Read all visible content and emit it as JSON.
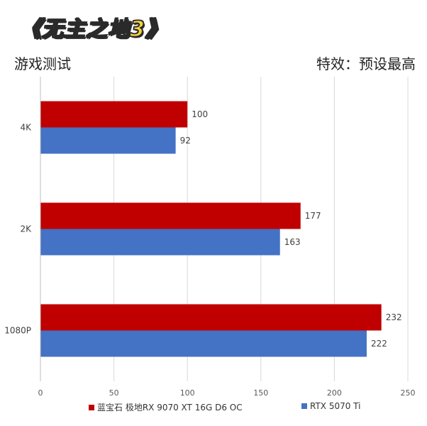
{
  "header": {
    "game_title": "《无主之地3》",
    "subtitle_left": "游戏测试",
    "subtitle_right": "特效：预设最高"
  },
  "colors": {
    "series_1": "#c00000",
    "series_2": "#4472c4",
    "grid": "#d9d9d9",
    "title_fill": "#f7d23c"
  },
  "chart_data": {
    "type": "bar",
    "orientation": "horizontal",
    "categories": [
      "4K",
      "2K",
      "1080P"
    ],
    "series": [
      {
        "name": "蓝宝石 极地RX 9070 XT 16G D6 OC",
        "values": [
          100,
          177,
          232
        ]
      },
      {
        "name": "RTX 5070 Ti",
        "values": [
          92,
          163,
          222
        ]
      }
    ],
    "xlim": [
      0,
      250
    ],
    "xticks": [
      0,
      50,
      100,
      150,
      200,
      250
    ],
    "grid": true,
    "legend_position": "bottom"
  }
}
